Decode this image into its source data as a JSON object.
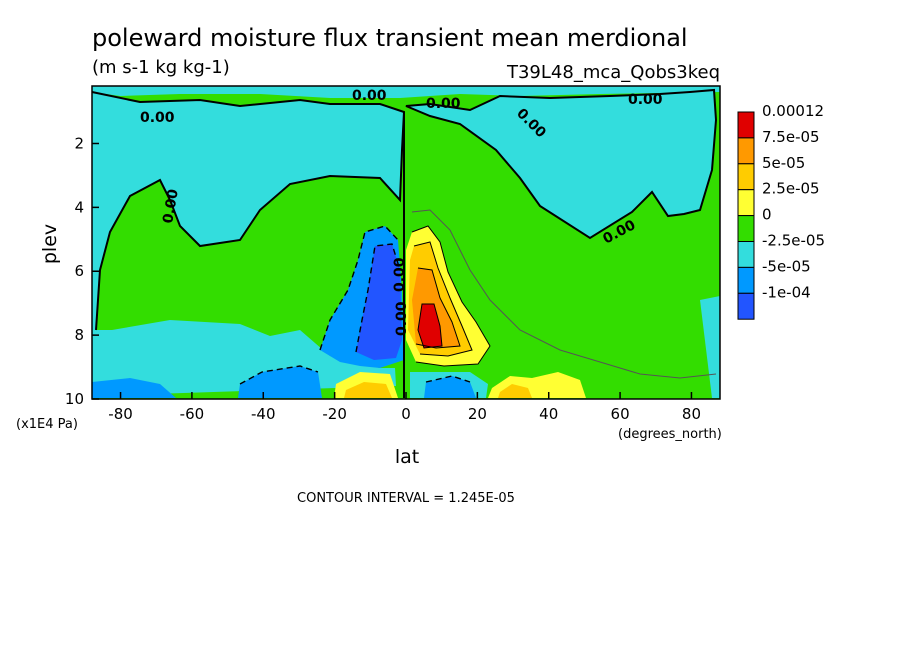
{
  "chart_data": {
    "type": "heatmap",
    "title": "poleward moisture flux transient mean merdional",
    "units": "(m s-1 kg kg-1)",
    "run_label": "T39L48_mca_Qobs3keq",
    "xlabel": "lat",
    "x_units": "(degrees_north)",
    "ylabel": "plev",
    "y_units": "(x1E4 Pa)",
    "xlim": [
      -88,
      88
    ],
    "ylim": [
      0.2,
      10
    ],
    "y_inverted": true,
    "x_ticks": [
      -80,
      -60,
      -40,
      -20,
      0,
      20,
      40,
      60,
      80
    ],
    "y_ticks": [
      2,
      4,
      6,
      8,
      10
    ],
    "contour_interval_text": "CONTOUR INTERVAL = 1.245E-05",
    "contour_labels": [
      "0.00",
      "0.00",
      "0.00",
      "0.00",
      "0.00",
      "0.00",
      "0.00",
      "0.00",
      "0.00"
    ],
    "levels": [
      {
        "label": "0.00012",
        "color": "#e00000"
      },
      {
        "label": "7.5e-05",
        "color": "#ff9900"
      },
      {
        "label": "5e-05",
        "color": "#ffcc00"
      },
      {
        "label": "2.5e-05",
        "color": "#ffff33"
      },
      {
        "label": "0",
        "color": "#33dd00"
      },
      {
        "label": "-2.5e-05",
        "color": "#33dddd"
      },
      {
        "label": "-5e-05",
        "color": "#0099ff"
      },
      {
        "label": "-1e-04",
        "color": "#2255ff"
      }
    ],
    "grid": false,
    "legend_position": "right"
  }
}
